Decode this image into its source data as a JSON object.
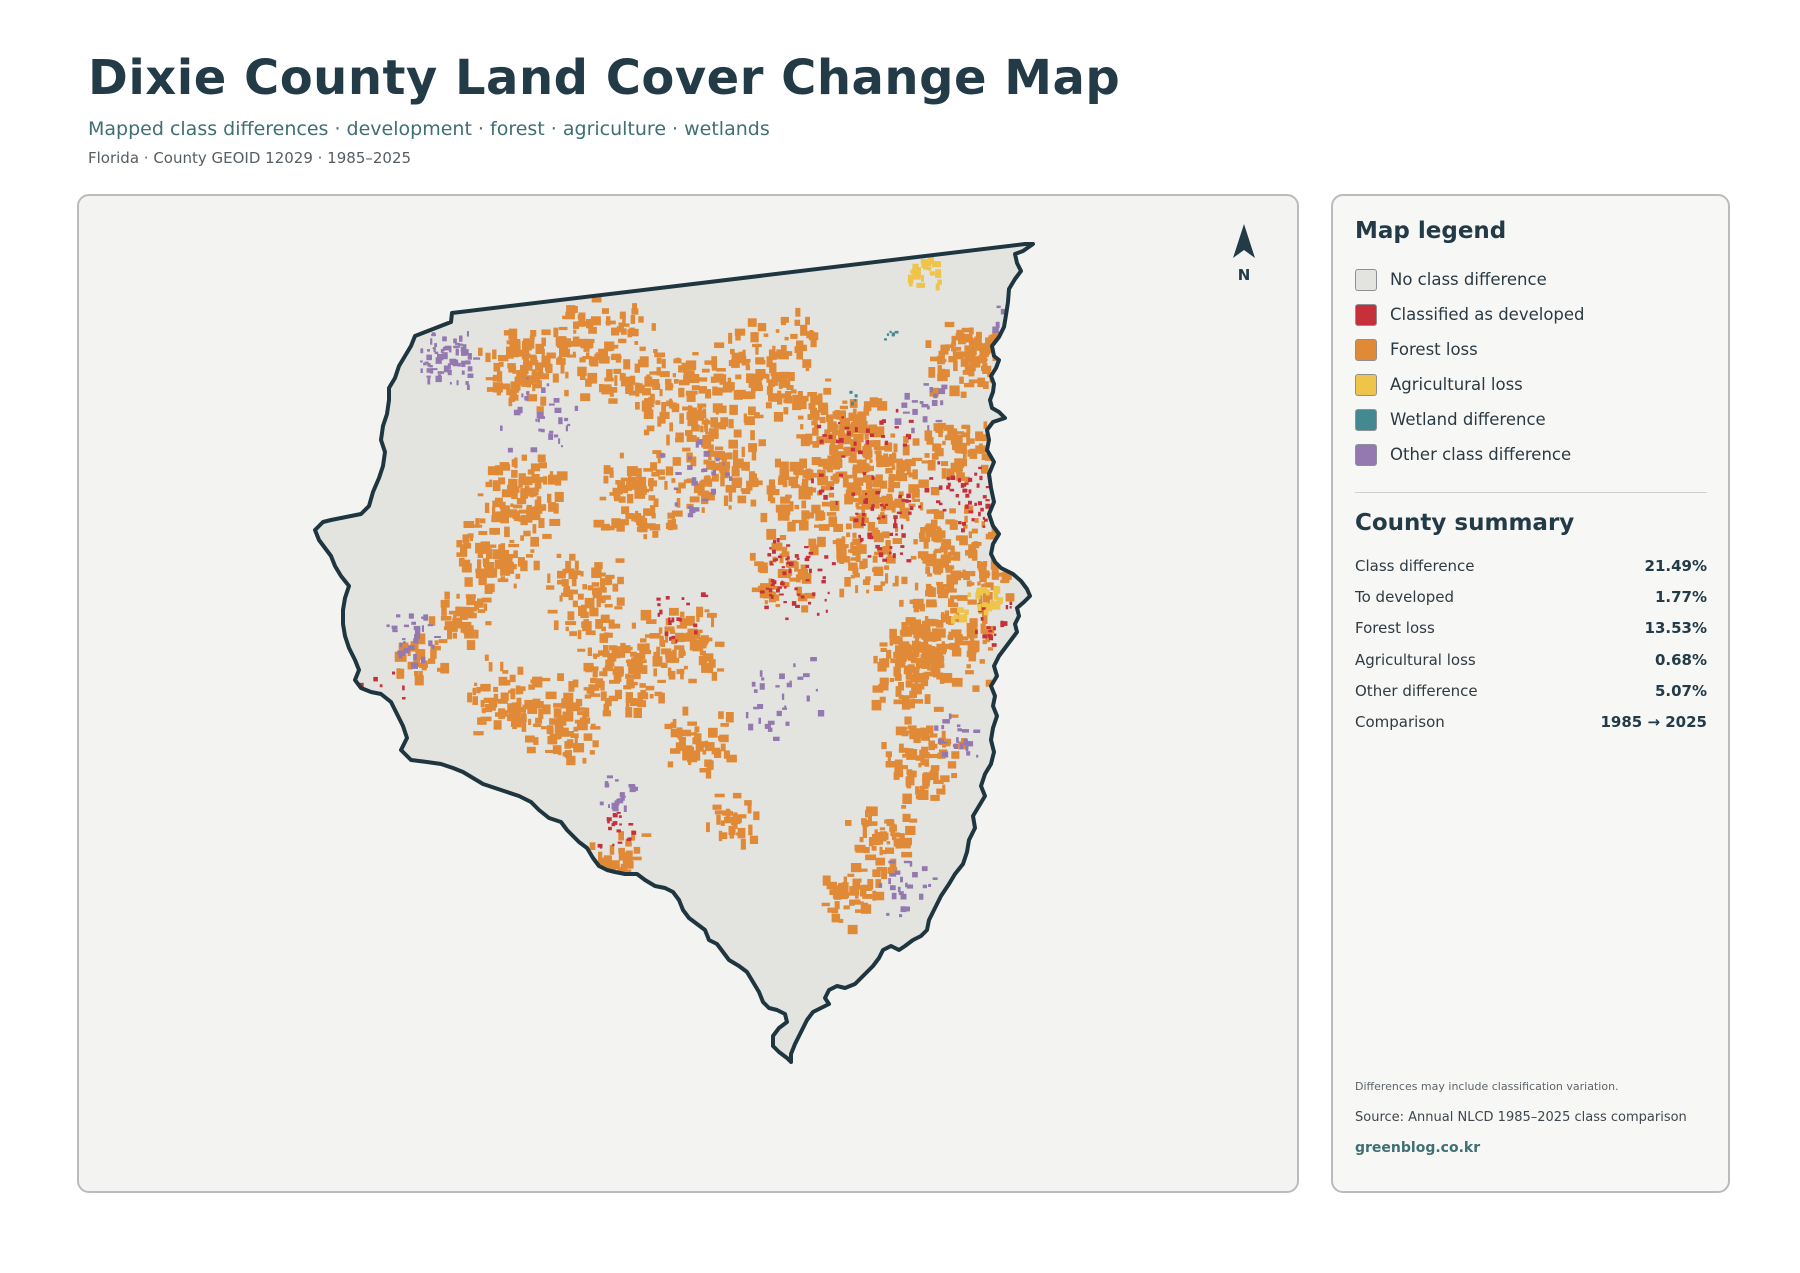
{
  "header": {
    "title": "Dixie County Land Cover Change Map",
    "subtitle": "Mapped class differences · development · forest · agriculture · wetlands",
    "meta": "Florida · County GEOID 12029 · 1985–2025"
  },
  "map": {
    "north_label": "N",
    "colors": {
      "no_change": "#e3e3e0",
      "developed": "#c6303b",
      "forest_loss": "#e08a37",
      "agricultural_loss": "#efc44a",
      "wetland": "#43898f",
      "other": "#9379b0",
      "outline": "#1f3540"
    }
  },
  "legend": {
    "heading": "Map legend",
    "items": [
      {
        "label": "No class difference",
        "color": "#e3e3e0"
      },
      {
        "label": "Classified as developed",
        "color": "#c6303b"
      },
      {
        "label": "Forest loss",
        "color": "#e08a37"
      },
      {
        "label": "Agricultural loss",
        "color": "#efc44a"
      },
      {
        "label": "Wetland difference",
        "color": "#43898f"
      },
      {
        "label": "Other class difference",
        "color": "#9379b0"
      }
    ]
  },
  "summary": {
    "heading": "County summary",
    "rows": [
      {
        "label": "Class difference",
        "value": "21.49%"
      },
      {
        "label": "To developed",
        "value": "1.77%"
      },
      {
        "label": "Forest loss",
        "value": "13.53%"
      },
      {
        "label": "Agricultural loss",
        "value": "0.68%"
      },
      {
        "label": "Other difference",
        "value": "5.07%"
      },
      {
        "label": "Comparison",
        "value": "1985 → 2025"
      }
    ]
  },
  "footer": {
    "note": "Differences may include classification variation.",
    "source": "Source: Annual NLCD 1985–2025 class comparison",
    "site": "greenblog.co.kr"
  }
}
